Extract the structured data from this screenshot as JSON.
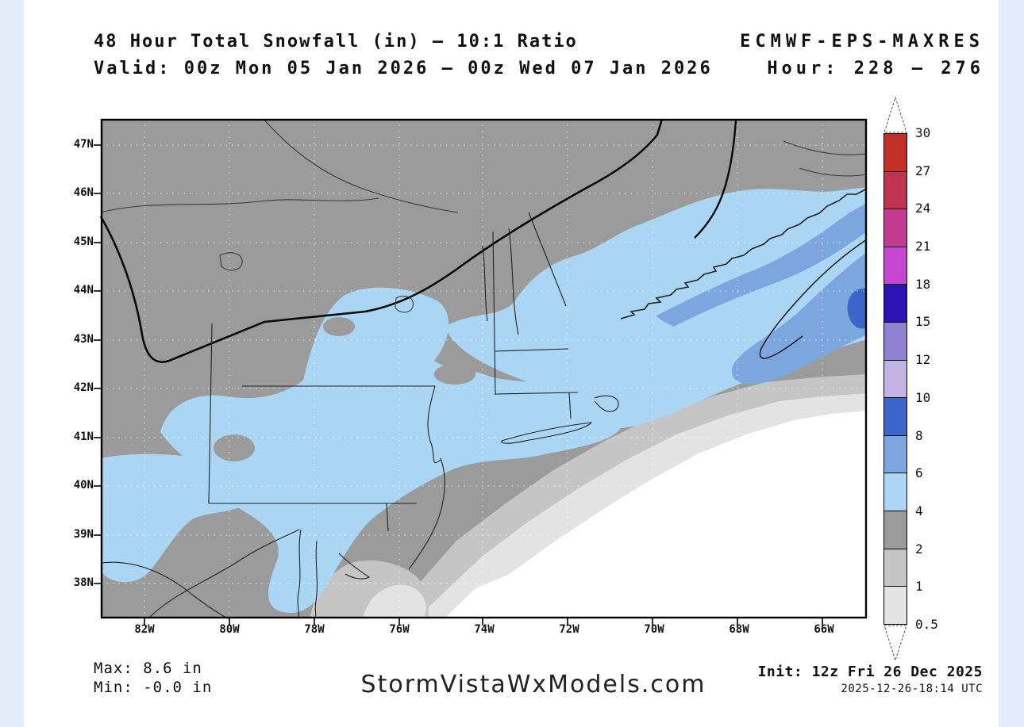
{
  "page": {
    "background": "#e4eefa",
    "content_background": "#ffffff"
  },
  "header": {
    "title": "48 Hour Total Snowfall (in) – 10:1 Ratio",
    "model": "ECMWF-EPS-MAXRES",
    "valid": "Valid: 00z Mon 05 Jan 2026 – 00z Wed 07 Jan 2026",
    "hour": "Hour: 228 – 276"
  },
  "map": {
    "lat_labels": [
      "47N",
      "46N",
      "45N",
      "44N",
      "43N",
      "42N",
      "41N",
      "40N",
      "39N",
      "38N"
    ],
    "lon_labels": [
      "82W",
      "80W",
      "78W",
      "76W",
      "74W",
      "72W",
      "70W",
      "68W",
      "66W"
    ]
  },
  "colorbar": {
    "units": "in",
    "labels_top_to_bottom": [
      "30",
      "27",
      "24",
      "21",
      "18",
      "15",
      "12",
      "10",
      "8",
      "6",
      "4",
      "2",
      "1",
      "0.5"
    ],
    "segment_colors_top_to_bottom": [
      "#c23128",
      "#c23253",
      "#c23b90",
      "#c746cf",
      "#2d12b5",
      "#8f80d2",
      "#c2b4e2",
      "#3d65cc",
      "#7ba7de",
      "#aad5f3",
      "#9b9b9b",
      "#c5c5c5",
      "#e3e3e3"
    ]
  },
  "map_palette": {
    "land_2_4in": "#9b9b9b",
    "snow_4_6in": "#aad5f3",
    "snow_6_8in": "#7ba7de",
    "snow_8_10in": "#3d65cc",
    "trace_1_2in": "#c5c5c5",
    "trace_05_1in": "#e3e3e3",
    "none": "#ffffff"
  },
  "footer": {
    "max": "Max: 8.6 in",
    "min": "Min: -0.0 in",
    "watermark": "StormVistaWxModels.com",
    "init": "Init: 12z Fri 26 Dec 2025",
    "init_utc": "2025-12-26-18:14 UTC"
  }
}
